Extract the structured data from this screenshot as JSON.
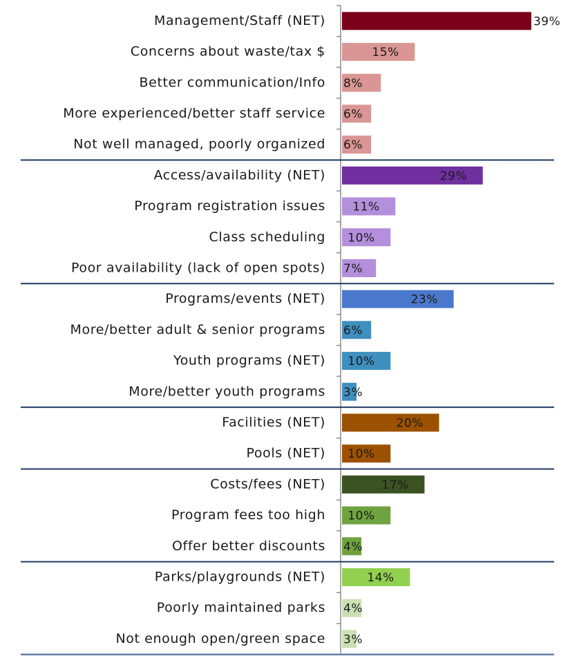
{
  "chart_data": {
    "type": "barh",
    "categories": [
      "Management/Staff (NET)",
      "Concerns about waste/tax $",
      "Better communication/Info",
      "More experienced/better staff service",
      "Not well managed, poorly organized",
      "Access/availability (NET)",
      "Program registration issues",
      "Class scheduling",
      "Poor availability (lack of open spots)",
      "Programs/events (NET)",
      "More/better adult & senior programs",
      "Youth programs (NET)",
      "More/better youth programs",
      "Facilities (NET)",
      "Pools (NET)",
      "Costs/fees (NET)",
      "Program fees too high",
      "Offer better discounts",
      "Parks/playgrounds (NET)",
      "Poorly maintained parks",
      "Not enough open/green space"
    ],
    "values": [
      39,
      15,
      8,
      6,
      6,
      29,
      11,
      10,
      7,
      23,
      6,
      10,
      3,
      20,
      10,
      17,
      10,
      4,
      14,
      4,
      3
    ],
    "value_labels": [
      "39%",
      "15%",
      "8%",
      "6%",
      "6%",
      "29%",
      "11%",
      "10%",
      "7%",
      "23%",
      "6%",
      "10%",
      "3%",
      "20%",
      "10%",
      "17%",
      "10%",
      "4%",
      "14%",
      "4%",
      "3%"
    ],
    "colors": [
      "#7b0019",
      "#da9694",
      "#da9694",
      "#da9694",
      "#da9694",
      "#7030a0",
      "#b48fdc",
      "#b48fdc",
      "#b48fdc",
      "#4a78cc",
      "#3f8fbf",
      "#3f8fbf",
      "#3f8fbf",
      "#9c5100",
      "#9c5100",
      "#3b5323",
      "#6fa33f",
      "#6fa33f",
      "#92d050",
      "#c9e0b4",
      "#c9e0b4"
    ],
    "xlim": [
      0,
      40
    ],
    "group_ends": [
      4,
      8,
      12,
      14,
      17,
      20
    ]
  }
}
